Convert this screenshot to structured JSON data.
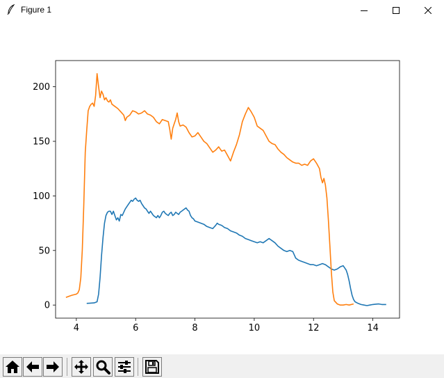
{
  "window": {
    "title": "Figure 1",
    "controls": [
      "minimize",
      "maximize",
      "close"
    ]
  },
  "toolbar": {
    "buttons": [
      {
        "name": "home",
        "icon": "home-icon"
      },
      {
        "name": "back",
        "icon": "arrow-left-icon"
      },
      {
        "name": "forward",
        "icon": "arrow-right-icon"
      },
      {
        "name": "pan",
        "icon": "move-icon"
      },
      {
        "name": "zoom",
        "icon": "magnifier-icon"
      },
      {
        "name": "subplots",
        "icon": "sliders-icon"
      },
      {
        "name": "save",
        "icon": "floppy-disk-icon"
      }
    ]
  },
  "chart_data": {
    "type": "line",
    "title": "",
    "xlabel": "",
    "ylabel": "",
    "xlim": [
      3.3,
      14.9
    ],
    "ylim": [
      -12,
      224
    ],
    "xticks": [
      4,
      6,
      8,
      10,
      12,
      14
    ],
    "yticks": [
      0,
      50,
      100,
      150,
      200
    ],
    "grid": false,
    "legend": "none",
    "series": [
      {
        "color": "#1f77b4",
        "points": [
          [
            4.35,
            1.5
          ],
          [
            4.6,
            2
          ],
          [
            4.7,
            3
          ],
          [
            4.75,
            10
          ],
          [
            4.8,
            25
          ],
          [
            4.85,
            45
          ],
          [
            4.9,
            62
          ],
          [
            4.95,
            75
          ],
          [
            5.0,
            82
          ],
          [
            5.05,
            85
          ],
          [
            5.1,
            86
          ],
          [
            5.15,
            86
          ],
          [
            5.2,
            83
          ],
          [
            5.25,
            86
          ],
          [
            5.3,
            82
          ],
          [
            5.35,
            78
          ],
          [
            5.4,
            80
          ],
          [
            5.45,
            77
          ],
          [
            5.5,
            83
          ],
          [
            5.55,
            82
          ],
          [
            5.6,
            85
          ],
          [
            5.65,
            88
          ],
          [
            5.7,
            90
          ],
          [
            5.75,
            92
          ],
          [
            5.8,
            94
          ],
          [
            5.85,
            96
          ],
          [
            5.9,
            95
          ],
          [
            5.95,
            97
          ],
          [
            6.0,
            98
          ],
          [
            6.05,
            96
          ],
          [
            6.1,
            95
          ],
          [
            6.15,
            96
          ],
          [
            6.2,
            93
          ],
          [
            6.25,
            91
          ],
          [
            6.3,
            89
          ],
          [
            6.35,
            88
          ],
          [
            6.4,
            86
          ],
          [
            6.45,
            84
          ],
          [
            6.5,
            86
          ],
          [
            6.55,
            84
          ],
          [
            6.6,
            82
          ],
          [
            6.65,
            81
          ],
          [
            6.7,
            80
          ],
          [
            6.75,
            82
          ],
          [
            6.8,
            80
          ],
          [
            6.85,
            82
          ],
          [
            6.9,
            85
          ],
          [
            6.95,
            86
          ],
          [
            7.0,
            84
          ],
          [
            7.05,
            83
          ],
          [
            7.1,
            82
          ],
          [
            7.15,
            84
          ],
          [
            7.2,
            85
          ],
          [
            7.25,
            82
          ],
          [
            7.3,
            83
          ],
          [
            7.35,
            85
          ],
          [
            7.4,
            84
          ],
          [
            7.45,
            83
          ],
          [
            7.5,
            85
          ],
          [
            7.55,
            86
          ],
          [
            7.6,
            87
          ],
          [
            7.65,
            88
          ],
          [
            7.7,
            89
          ],
          [
            7.75,
            87
          ],
          [
            7.8,
            86
          ],
          [
            7.85,
            82
          ],
          [
            7.9,
            80
          ],
          [
            7.95,
            79
          ],
          [
            8.0,
            77
          ],
          [
            8.1,
            76
          ],
          [
            8.2,
            75
          ],
          [
            8.3,
            74
          ],
          [
            8.4,
            72
          ],
          [
            8.5,
            71
          ],
          [
            8.6,
            70
          ],
          [
            8.7,
            73
          ],
          [
            8.75,
            75
          ],
          [
            8.8,
            74
          ],
          [
            8.9,
            73
          ],
          [
            9.0,
            71
          ],
          [
            9.1,
            70
          ],
          [
            9.2,
            68
          ],
          [
            9.3,
            67
          ],
          [
            9.4,
            66
          ],
          [
            9.5,
            64
          ],
          [
            9.6,
            63
          ],
          [
            9.7,
            61
          ],
          [
            9.8,
            60
          ],
          [
            9.9,
            59
          ],
          [
            10.0,
            58
          ],
          [
            10.1,
            57
          ],
          [
            10.2,
            58
          ],
          [
            10.3,
            57
          ],
          [
            10.4,
            59
          ],
          [
            10.5,
            61
          ],
          [
            10.6,
            59
          ],
          [
            10.7,
            57
          ],
          [
            10.8,
            54
          ],
          [
            10.9,
            52
          ],
          [
            11.0,
            50
          ],
          [
            11.1,
            49
          ],
          [
            11.2,
            50
          ],
          [
            11.3,
            49
          ],
          [
            11.35,
            46
          ],
          [
            11.4,
            43
          ],
          [
            11.5,
            41
          ],
          [
            11.6,
            40
          ],
          [
            11.7,
            39
          ],
          [
            11.8,
            38
          ],
          [
            11.9,
            37
          ],
          [
            12.0,
            37
          ],
          [
            12.1,
            36
          ],
          [
            12.2,
            37
          ],
          [
            12.3,
            38
          ],
          [
            12.4,
            37
          ],
          [
            12.5,
            35
          ],
          [
            12.6,
            33
          ],
          [
            12.7,
            32
          ],
          [
            12.8,
            33
          ],
          [
            12.9,
            35
          ],
          [
            13.0,
            36
          ],
          [
            13.05,
            34
          ],
          [
            13.1,
            32
          ],
          [
            13.15,
            28
          ],
          [
            13.2,
            22
          ],
          [
            13.25,
            15
          ],
          [
            13.3,
            9
          ],
          [
            13.35,
            5
          ],
          [
            13.4,
            3
          ],
          [
            13.5,
            1.5
          ],
          [
            13.6,
            0.5
          ],
          [
            13.7,
            0
          ],
          [
            13.8,
            -0.5
          ],
          [
            13.9,
            0
          ],
          [
            14.0,
            0.5
          ],
          [
            14.1,
            0.8
          ],
          [
            14.2,
            1
          ],
          [
            14.3,
            0.5
          ],
          [
            14.45,
            0.5
          ]
        ]
      },
      {
        "color": "#ff7f0e",
        "points": [
          [
            3.65,
            7
          ],
          [
            3.75,
            8
          ],
          [
            3.85,
            9
          ],
          [
            4.0,
            10
          ],
          [
            4.05,
            11
          ],
          [
            4.1,
            14
          ],
          [
            4.15,
            25
          ],
          [
            4.2,
            50
          ],
          [
            4.25,
            90
          ],
          [
            4.3,
            140
          ],
          [
            4.35,
            160
          ],
          [
            4.4,
            178
          ],
          [
            4.45,
            182
          ],
          [
            4.5,
            184
          ],
          [
            4.55,
            185
          ],
          [
            4.6,
            182
          ],
          [
            4.65,
            192
          ],
          [
            4.7,
            212
          ],
          [
            4.75,
            200
          ],
          [
            4.8,
            190
          ],
          [
            4.85,
            196
          ],
          [
            4.9,
            193
          ],
          [
            4.95,
            188
          ],
          [
            5.0,
            190
          ],
          [
            5.05,
            187
          ],
          [
            5.1,
            186
          ],
          [
            5.15,
            188
          ],
          [
            5.2,
            184
          ],
          [
            5.3,
            182
          ],
          [
            5.4,
            180
          ],
          [
            5.5,
            177
          ],
          [
            5.6,
            174
          ],
          [
            5.65,
            169
          ],
          [
            5.7,
            172
          ],
          [
            5.8,
            174
          ],
          [
            5.9,
            178
          ],
          [
            6.0,
            177
          ],
          [
            6.1,
            175
          ],
          [
            6.2,
            176
          ],
          [
            6.3,
            178
          ],
          [
            6.4,
            175
          ],
          [
            6.5,
            174
          ],
          [
            6.6,
            172
          ],
          [
            6.7,
            168
          ],
          [
            6.8,
            166
          ],
          [
            6.9,
            170
          ],
          [
            7.0,
            169
          ],
          [
            7.1,
            168
          ],
          [
            7.15,
            161
          ],
          [
            7.2,
            152
          ],
          [
            7.25,
            162
          ],
          [
            7.3,
            166
          ],
          [
            7.35,
            170
          ],
          [
            7.4,
            176
          ],
          [
            7.45,
            168
          ],
          [
            7.5,
            164
          ],
          [
            7.6,
            165
          ],
          [
            7.7,
            163
          ],
          [
            7.8,
            158
          ],
          [
            7.9,
            154
          ],
          [
            8.0,
            155
          ],
          [
            8.1,
            158
          ],
          [
            8.2,
            154
          ],
          [
            8.3,
            150
          ],
          [
            8.4,
            148
          ],
          [
            8.5,
            144
          ],
          [
            8.6,
            140
          ],
          [
            8.7,
            142
          ],
          [
            8.8,
            145
          ],
          [
            8.9,
            141
          ],
          [
            9.0,
            142
          ],
          [
            9.1,
            137
          ],
          [
            9.2,
            132
          ],
          [
            9.3,
            140
          ],
          [
            9.4,
            147
          ],
          [
            9.5,
            156
          ],
          [
            9.6,
            168
          ],
          [
            9.7,
            175
          ],
          [
            9.8,
            181
          ],
          [
            9.9,
            177
          ],
          [
            10.0,
            172
          ],
          [
            10.1,
            164
          ],
          [
            10.2,
            162
          ],
          [
            10.3,
            160
          ],
          [
            10.4,
            155
          ],
          [
            10.5,
            150
          ],
          [
            10.6,
            148
          ],
          [
            10.7,
            147
          ],
          [
            10.8,
            143
          ],
          [
            10.9,
            140
          ],
          [
            11.0,
            138
          ],
          [
            11.1,
            135
          ],
          [
            11.2,
            133
          ],
          [
            11.3,
            131
          ],
          [
            11.4,
            130
          ],
          [
            11.5,
            130
          ],
          [
            11.6,
            128
          ],
          [
            11.7,
            129
          ],
          [
            11.8,
            128
          ],
          [
            11.9,
            132
          ],
          [
            12.0,
            134
          ],
          [
            12.1,
            130
          ],
          [
            12.2,
            125
          ],
          [
            12.25,
            117
          ],
          [
            12.3,
            112
          ],
          [
            12.35,
            116
          ],
          [
            12.4,
            110
          ],
          [
            12.45,
            98
          ],
          [
            12.5,
            78
          ],
          [
            12.55,
            55
          ],
          [
            12.6,
            30
          ],
          [
            12.65,
            12
          ],
          [
            12.7,
            4
          ],
          [
            12.8,
            1
          ],
          [
            12.9,
            0
          ],
          [
            13.0,
            0
          ],
          [
            13.1,
            0.5
          ],
          [
            13.2,
            0
          ],
          [
            13.35,
            1
          ]
        ]
      }
    ]
  }
}
